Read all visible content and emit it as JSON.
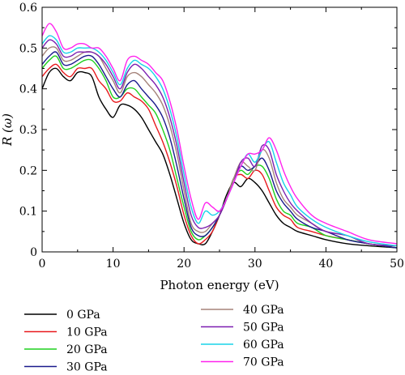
{
  "chart_data": {
    "type": "line",
    "xlabel": "Photon energy (eV)",
    "ylabel": "R (ω)",
    "xlim": [
      0,
      50
    ],
    "ylim": [
      0,
      0.6
    ],
    "x_ticks": [
      0,
      10,
      20,
      30,
      40,
      50
    ],
    "y_ticks": [
      0,
      0.1,
      0.2,
      0.3,
      0.4,
      0.5,
      0.6
    ],
    "x_tick_labels": [
      "0",
      "10",
      "20",
      "30",
      "40",
      "50"
    ],
    "y_tick_labels": [
      "0",
      "0.1",
      "0.2",
      "0.3",
      "0.4",
      "0.5",
      "0.6"
    ],
    "grid": false,
    "legend_position": "bottom",
    "x": [
      0,
      1,
      2,
      3,
      4,
      5,
      6,
      7,
      8,
      9,
      10,
      11,
      12,
      13,
      14,
      15,
      16,
      17,
      18,
      19,
      20,
      21,
      22,
      23,
      24,
      25,
      26,
      27,
      28,
      29,
      30,
      31,
      32,
      33,
      34,
      35,
      36,
      38,
      40,
      43,
      46,
      50
    ],
    "series": [
      {
        "name": "0 GPa",
        "color": "#000000",
        "values": [
          0.4,
          0.44,
          0.45,
          0.43,
          0.42,
          0.44,
          0.44,
          0.43,
          0.38,
          0.35,
          0.33,
          0.36,
          0.36,
          0.35,
          0.33,
          0.3,
          0.27,
          0.24,
          0.19,
          0.13,
          0.07,
          0.03,
          0.02,
          0.02,
          0.05,
          0.09,
          0.14,
          0.17,
          0.16,
          0.18,
          0.17,
          0.15,
          0.12,
          0.09,
          0.07,
          0.06,
          0.05,
          0.04,
          0.03,
          0.02,
          0.015,
          0.01
        ]
      },
      {
        "name": "10 GPa",
        "color": "#e8191d",
        "values": [
          0.43,
          0.45,
          0.46,
          0.44,
          0.43,
          0.45,
          0.45,
          0.45,
          0.42,
          0.4,
          0.37,
          0.37,
          0.39,
          0.38,
          0.37,
          0.35,
          0.31,
          0.27,
          0.22,
          0.16,
          0.09,
          0.04,
          0.02,
          0.03,
          0.05,
          0.09,
          0.13,
          0.18,
          0.19,
          0.18,
          0.2,
          0.19,
          0.15,
          0.11,
          0.09,
          0.08,
          0.06,
          0.05,
          0.04,
          0.03,
          0.02,
          0.01
        ]
      },
      {
        "name": "20 GPa",
        "color": "#1ed01e",
        "values": [
          0.45,
          0.47,
          0.48,
          0.45,
          0.45,
          0.46,
          0.47,
          0.47,
          0.45,
          0.42,
          0.38,
          0.38,
          0.4,
          0.4,
          0.38,
          0.36,
          0.34,
          0.3,
          0.25,
          0.18,
          0.11,
          0.05,
          0.03,
          0.04,
          0.06,
          0.09,
          0.13,
          0.18,
          0.2,
          0.19,
          0.21,
          0.21,
          0.18,
          0.13,
          0.1,
          0.09,
          0.07,
          0.06,
          0.04,
          0.03,
          0.02,
          0.01
        ]
      },
      {
        "name": "30 GPa",
        "color": "#1a1a8c",
        "values": [
          0.46,
          0.48,
          0.49,
          0.46,
          0.46,
          0.47,
          0.48,
          0.48,
          0.46,
          0.43,
          0.4,
          0.38,
          0.41,
          0.42,
          0.4,
          0.38,
          0.36,
          0.33,
          0.28,
          0.21,
          0.13,
          0.06,
          0.04,
          0.04,
          0.06,
          0.09,
          0.13,
          0.18,
          0.21,
          0.2,
          0.21,
          0.23,
          0.2,
          0.15,
          0.12,
          0.1,
          0.08,
          0.06,
          0.05,
          0.03,
          0.02,
          0.01
        ]
      },
      {
        "name": "40 GPa",
        "color": "#a5837a",
        "values": [
          0.48,
          0.5,
          0.5,
          0.47,
          0.47,
          0.48,
          0.49,
          0.49,
          0.48,
          0.45,
          0.42,
          0.39,
          0.43,
          0.44,
          0.43,
          0.41,
          0.39,
          0.36,
          0.31,
          0.24,
          0.15,
          0.07,
          0.05,
          0.05,
          0.07,
          0.09,
          0.13,
          0.18,
          0.22,
          0.21,
          0.2,
          0.25,
          0.23,
          0.17,
          0.13,
          0.11,
          0.09,
          0.07,
          0.05,
          0.04,
          0.02,
          0.015
        ]
      },
      {
        "name": "50 GPa",
        "color": "#7c1fb0",
        "values": [
          0.5,
          0.52,
          0.51,
          0.48,
          0.48,
          0.49,
          0.49,
          0.49,
          0.48,
          0.46,
          0.43,
          0.4,
          0.44,
          0.46,
          0.45,
          0.43,
          0.41,
          0.38,
          0.33,
          0.26,
          0.17,
          0.09,
          0.06,
          0.06,
          0.07,
          0.09,
          0.13,
          0.17,
          0.22,
          0.23,
          0.21,
          0.26,
          0.25,
          0.19,
          0.15,
          0.12,
          0.1,
          0.07,
          0.05,
          0.04,
          0.02,
          0.015
        ]
      },
      {
        "name": "60 GPa",
        "color": "#18d4e8",
        "values": [
          0.51,
          0.53,
          0.52,
          0.49,
          0.49,
          0.5,
          0.5,
          0.5,
          0.49,
          0.47,
          0.44,
          0.41,
          0.45,
          0.47,
          0.46,
          0.45,
          0.43,
          0.4,
          0.35,
          0.28,
          0.19,
          0.11,
          0.07,
          0.1,
          0.09,
          0.1,
          0.13,
          0.17,
          0.21,
          0.24,
          0.22,
          0.25,
          0.27,
          0.22,
          0.17,
          0.14,
          0.11,
          0.08,
          0.06,
          0.04,
          0.025,
          0.015
        ]
      },
      {
        "name": "70 GPa",
        "color": "#ff22ee",
        "values": [
          0.53,
          0.56,
          0.54,
          0.5,
          0.5,
          0.51,
          0.51,
          0.5,
          0.5,
          0.48,
          0.45,
          0.42,
          0.47,
          0.48,
          0.47,
          0.46,
          0.44,
          0.42,
          0.37,
          0.3,
          0.21,
          0.13,
          0.08,
          0.12,
          0.11,
          0.1,
          0.13,
          0.17,
          0.21,
          0.24,
          0.24,
          0.25,
          0.28,
          0.25,
          0.2,
          0.16,
          0.13,
          0.09,
          0.07,
          0.05,
          0.03,
          0.02
        ]
      }
    ]
  }
}
